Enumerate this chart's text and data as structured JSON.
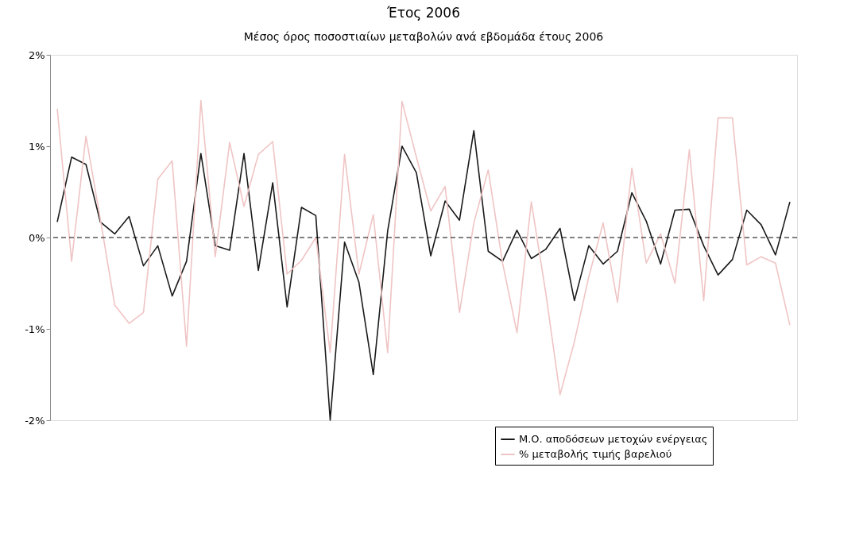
{
  "chart_data": {
    "type": "line",
    "title": "Έτος 2006",
    "subtitle": "Μέσος όρος ποσοστιαίων μεταβολών ανά εβδομάδα έτους 2006",
    "categories": [
      null,
      null,
      null,
      null,
      null,
      null,
      null,
      null,
      null,
      null,
      null,
      null,
      null,
      null,
      null,
      null,
      null,
      null,
      null,
      null,
      null,
      null,
      null,
      null,
      null,
      null,
      null,
      null,
      null,
      null,
      null,
      null,
      null,
      null,
      null,
      null,
      null,
      null,
      null,
      null,
      null,
      null,
      null,
      null,
      null,
      null,
      null,
      null,
      null,
      null,
      null,
      null
    ],
    "series": [
      {
        "name": "Μ.Ο. αποδόσεων μετοχών ενέργειας",
        "color": "#1a1a1a",
        "values": [
          0.17,
          0.88,
          0.8,
          0.17,
          0.04,
          0.23,
          -0.31,
          -0.09,
          -0.64,
          -0.26,
          0.92,
          -0.09,
          -0.14,
          0.92,
          -0.36,
          0.6,
          -0.76,
          0.33,
          0.24,
          -2.0,
          -0.05,
          -0.49,
          -1.5,
          0.07,
          1.0,
          0.71,
          -0.2,
          0.4,
          0.19,
          1.17,
          -0.15,
          -0.26,
          0.08,
          -0.23,
          -0.13,
          0.1,
          -0.69,
          -0.09,
          -0.29,
          -0.15,
          0.49,
          0.18,
          -0.29,
          0.3,
          0.31,
          -0.09,
          -0.41,
          -0.24,
          0.3,
          0.14,
          -0.19,
          0.39
        ]
      },
      {
        "name": "% μεταβολής τιμής βαρελιού",
        "color": "#f0c4c4",
        "values": [
          1.41,
          -0.26,
          1.11,
          0.2,
          -0.74,
          -0.94,
          -0.82,
          0.64,
          0.84,
          -1.19,
          1.5,
          -0.21,
          1.04,
          0.34,
          0.91,
          1.05,
          -0.4,
          -0.25,
          0.0,
          -1.26,
          0.91,
          -0.4,
          0.25,
          -1.26,
          1.49,
          0.88,
          0.29,
          0.56,
          -0.82,
          0.16,
          0.74,
          -0.28,
          -1.04,
          0.39,
          -0.6,
          -1.72,
          -1.14,
          -0.43,
          0.16,
          -0.71,
          0.76,
          -0.28,
          0.04,
          -0.5,
          0.96,
          -0.69,
          1.31,
          1.31,
          -0.3,
          -0.21,
          -0.28,
          -0.96
        ]
      }
    ],
    "ylim": [
      -2,
      2
    ],
    "yticks": [
      {
        "value": -2,
        "label": "-2%"
      },
      {
        "value": -1,
        "label": "-1%"
      },
      {
        "value": 0,
        "label": "0%"
      },
      {
        "value": 1,
        "label": "1%"
      },
      {
        "value": 2,
        "label": "2%"
      }
    ],
    "ref_lines": [
      {
        "axis": "y",
        "value": 0,
        "label": null,
        "color": "#000000",
        "line_style": "dashed"
      }
    ],
    "tick_labels": "y",
    "grid": false,
    "legend": "bottom right",
    "marker": "none",
    "line_style": "solid"
  }
}
